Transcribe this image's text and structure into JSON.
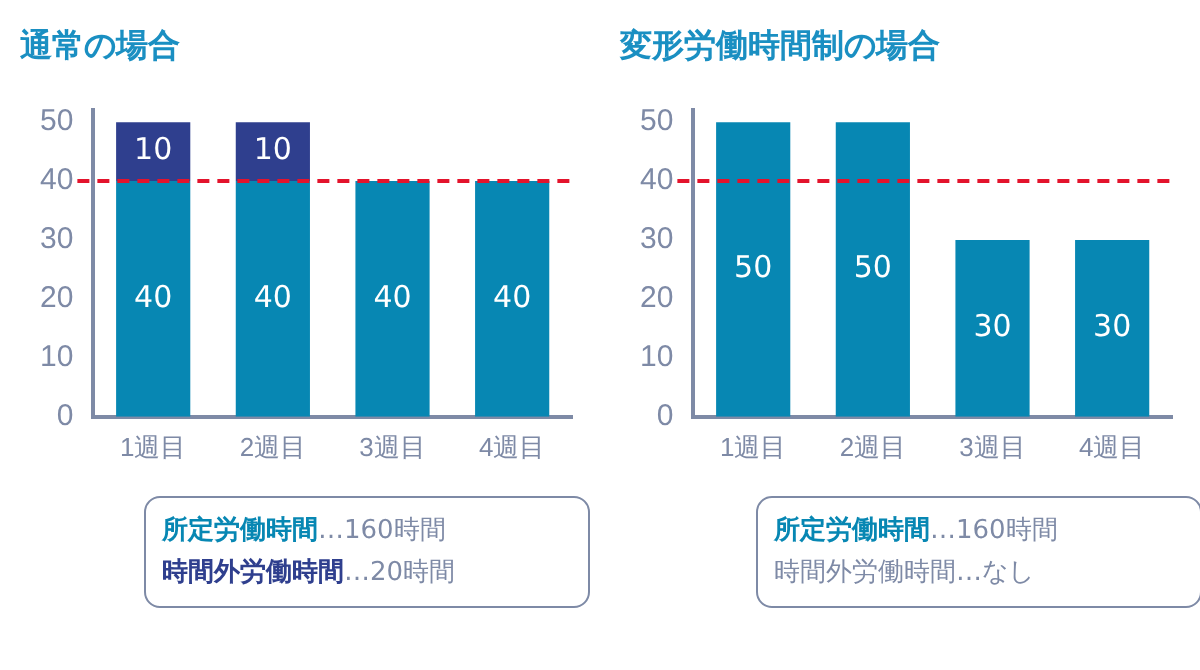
{
  "chart_data": [
    {
      "type": "bar",
      "title": "通常の場合",
      "categories": [
        "1週目",
        "2週目",
        "3週目",
        "4週目"
      ],
      "stacked": true,
      "series": [
        {
          "color": "#0787b3",
          "values": [
            40,
            40,
            40,
            40
          ]
        },
        {
          "color": "#2f3f8e",
          "values": [
            10,
            10,
            null,
            null
          ]
        }
      ],
      "ylim": [
        0,
        52
      ],
      "yticks": [
        0,
        10,
        20,
        30,
        40,
        50
      ],
      "grid": false,
      "legend": false,
      "data_labels": true,
      "ref_lines": [
        {
          "axis": "y",
          "value": 40,
          "color": "#e3132c",
          "line_style": "dashed"
        }
      ],
      "annotations": [
        "所定労働時間…160時間",
        "時間外労働時間…20時間"
      ]
    },
    {
      "type": "bar",
      "title": "変形労働時間制の場合",
      "categories": [
        "1週目",
        "2週目",
        "3週目",
        "4週目"
      ],
      "series": [
        {
          "color": "#0787b3",
          "values": [
            50,
            50,
            30,
            30
          ]
        }
      ],
      "ylim": [
        0,
        52
      ],
      "yticks": [
        0,
        10,
        20,
        30,
        40,
        50
      ],
      "grid": false,
      "legend": false,
      "data_labels": true,
      "ref_lines": [
        {
          "axis": "y",
          "value": 40,
          "color": "#e3132c",
          "line_style": "dashed"
        }
      ],
      "annotations": [
        "所定労働時間…160時間",
        "時間外労働時間…なし"
      ]
    }
  ]
}
